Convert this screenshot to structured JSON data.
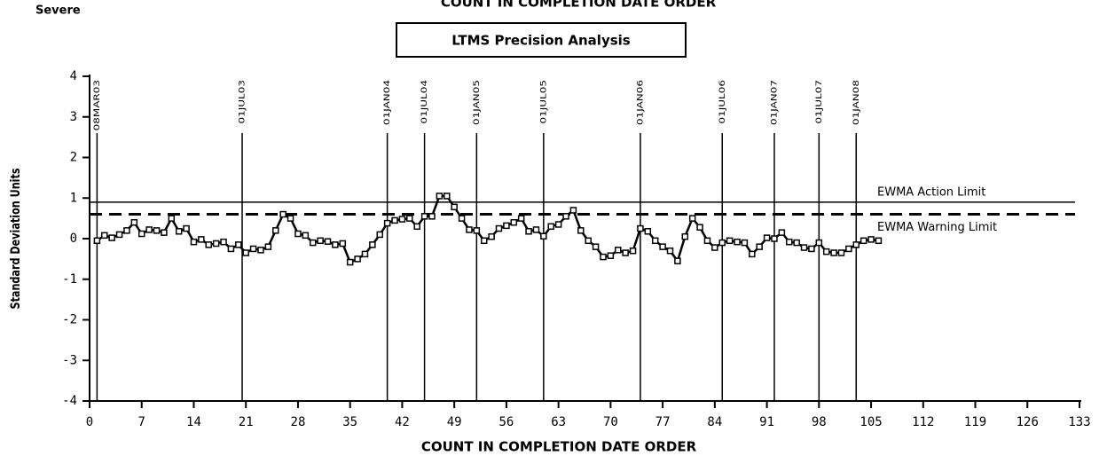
{
  "chart_data": {
    "type": "line",
    "header_left": "Severe",
    "header_top": "COUNT IN COMPLETION DATE ORDER",
    "title": "LTMS Precision Analysis",
    "x_label": "COUNT IN COMPLETION DATE ORDER",
    "y_label": "Standard Deviation Units",
    "xlim": [
      0,
      133
    ],
    "xticks": [
      0,
      7,
      14,
      21,
      28,
      35,
      42,
      49,
      56,
      63,
      70,
      77,
      84,
      91,
      98,
      105,
      112,
      119,
      126,
      133
    ],
    "ylim": [
      -4,
      4
    ],
    "yticks": [
      -4,
      -3,
      -2,
      -1,
      0,
      1,
      2,
      3,
      4
    ],
    "reference_lines": [
      {
        "value": 1,
        "label": "08MAR03"
      },
      {
        "value": 20.5,
        "label": "01JUL03"
      },
      {
        "value": 40,
        "label": "01JAN04"
      },
      {
        "value": 45,
        "label": "01JUL04"
      },
      {
        "value": 52,
        "label": "01JAN05"
      },
      {
        "value": 61,
        "label": "01JUL05"
      },
      {
        "value": 74,
        "label": "01JAN06"
      },
      {
        "value": 85,
        "label": "01JUL06"
      },
      {
        "value": 92,
        "label": "01JAN07"
      },
      {
        "value": 98,
        "label": "01JUL07"
      },
      {
        "value": 103,
        "label": "01JAN08"
      }
    ],
    "limits": [
      {
        "name": "EWMA Action Limit",
        "value": 0.9,
        "style": "solid"
      },
      {
        "name": "EWMA Warning Limit",
        "value": 0.6,
        "style": "dashed"
      }
    ],
    "series": [
      {
        "color": "#000000",
        "x": [
          1,
          2,
          3,
          4,
          5,
          6,
          7,
          8,
          9,
          10,
          11,
          12,
          13,
          14,
          15,
          16,
          17,
          18,
          19,
          20,
          21,
          22,
          23,
          24,
          25,
          26,
          27,
          28,
          29,
          30,
          31,
          32,
          33,
          34,
          35,
          36,
          37,
          38,
          39,
          40,
          41,
          42,
          43,
          44,
          45,
          46,
          47,
          48,
          49,
          50,
          51,
          52,
          53,
          54,
          55,
          56,
          57,
          58,
          59,
          60,
          61,
          62,
          63,
          64,
          65,
          66,
          67,
          68,
          69,
          70,
          71,
          72,
          73,
          74,
          75,
          76,
          77,
          78,
          79,
          80,
          81,
          82,
          83,
          84,
          85,
          86,
          87,
          88,
          89,
          90,
          91,
          92,
          93,
          94,
          95,
          96,
          97,
          98,
          99,
          100,
          101,
          102,
          103,
          104,
          105,
          106
        ],
        "values": [
          -0.05,
          0.08,
          0.02,
          0.1,
          0.2,
          0.4,
          0.12,
          0.22,
          0.2,
          0.15,
          0.5,
          0.18,
          0.25,
          -0.08,
          -0.02,
          -0.15,
          -0.12,
          -0.08,
          -0.25,
          -0.15,
          -0.35,
          -0.25,
          -0.28,
          -0.2,
          0.2,
          0.6,
          0.5,
          0.12,
          0.08,
          -0.1,
          -0.05,
          -0.07,
          -0.15,
          -0.12,
          -0.58,
          -0.5,
          -0.38,
          -0.15,
          0.1,
          0.38,
          0.45,
          0.48,
          0.5,
          0.3,
          0.55,
          0.55,
          1.05,
          1.05,
          0.78,
          0.5,
          0.22,
          0.2,
          -0.05,
          0.05,
          0.25,
          0.32,
          0.4,
          0.5,
          0.18,
          0.22,
          0.06,
          0.3,
          0.35,
          0.55,
          0.7,
          0.2,
          -0.05,
          -0.2,
          -0.45,
          -0.42,
          -0.28,
          -0.35,
          -0.3,
          0.25,
          0.18,
          -0.05,
          -0.2,
          -0.3,
          -0.55,
          0.05,
          0.5,
          0.28,
          -0.05,
          -0.22,
          -0.1,
          -0.05,
          -0.08,
          -0.1,
          -0.38,
          -0.2,
          0.02,
          0.0,
          0.15,
          -0.08,
          -0.1,
          -0.22,
          -0.25,
          -0.1,
          -0.32,
          -0.35,
          -0.35,
          -0.25,
          -0.15,
          -0.05,
          -0.02,
          -0.05
        ]
      }
    ]
  }
}
